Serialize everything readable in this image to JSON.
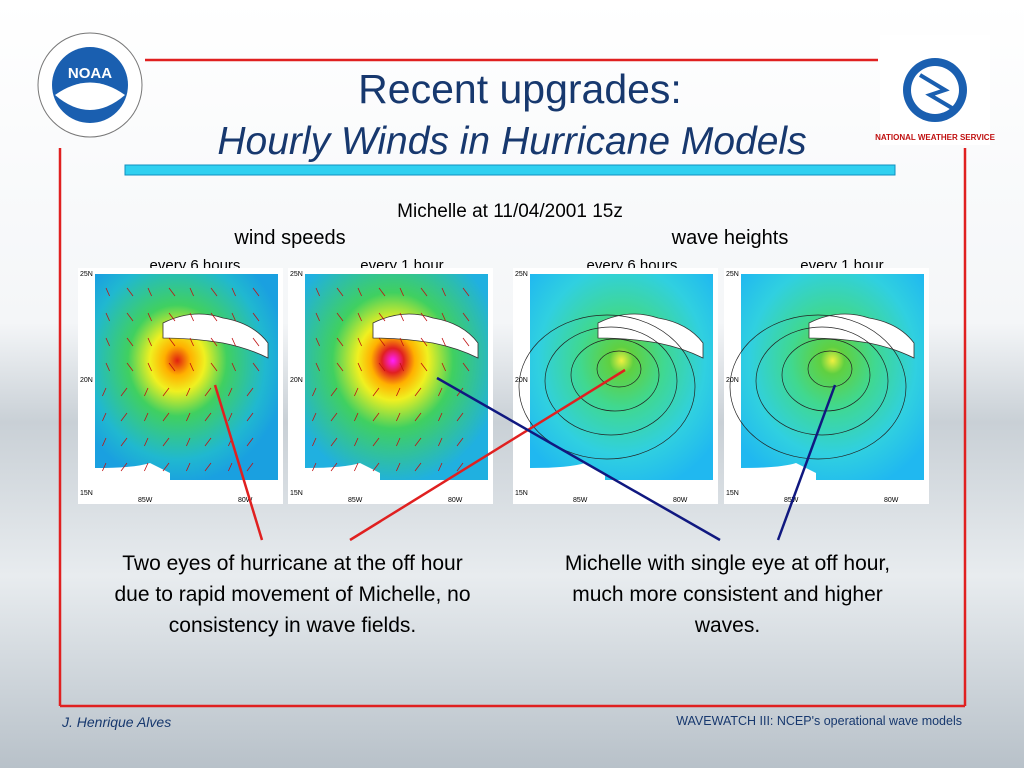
{
  "header": {
    "title_line1": "Recent upgrades:",
    "title_line2": "Hourly Winds in Hurricane Models",
    "logo_left": "NOAA",
    "logo_right": "NATIONAL WEATHER SERVICE"
  },
  "figure": {
    "caption": "Michelle at 11/04/2001 15z",
    "group_left": "wind speeds",
    "group_right": "wave heights",
    "panels": [
      {
        "label": "every 6 hours"
      },
      {
        "label": "every 1 hour"
      },
      {
        "label": "every 6 hours"
      },
      {
        "label": "every 1 hour"
      }
    ],
    "map_labels": {
      "lat": [
        "25N",
        "20N",
        "15N"
      ],
      "lon": [
        "85W",
        "80W"
      ]
    }
  },
  "notes": {
    "left": "Two eyes of hurricane at the off hour due to rapid movement of Michelle, no consistency in wave fields.",
    "right": "Michelle with single eye at off hour, much more consistent and higher waves."
  },
  "footer": {
    "author": "J. Henrique Alves",
    "source": "WAVEWATCH III: NCEP's operational wave models"
  }
}
